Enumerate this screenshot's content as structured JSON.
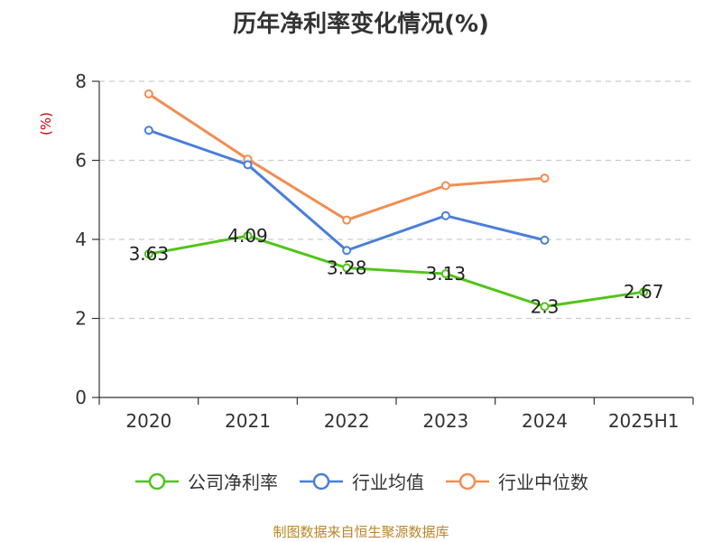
{
  "title": "历年净利率变化情况(%)",
  "y_unit": "(%)",
  "source": "制图数据来自恒生聚源数据库",
  "chart_data": {
    "type": "line",
    "categories": [
      "2020",
      "2021",
      "2022",
      "2023",
      "2024",
      "2025H1"
    ],
    "ylim": [
      0,
      8
    ],
    "yticks": [
      0,
      2,
      4,
      6,
      8
    ],
    "grid": true,
    "legend_position": "bottom",
    "series": [
      {
        "name": "公司净利率",
        "color": "#52c41a",
        "values": [
          3.63,
          4.09,
          3.28,
          3.13,
          2.3,
          2.67
        ],
        "labels": [
          "3.63",
          "4.09",
          "3.28",
          "3.13",
          "2.3",
          "2.67"
        ]
      },
      {
        "name": "行业均值",
        "color": "#4a7fd9",
        "values": [
          6.76,
          5.89,
          3.72,
          4.6,
          3.98,
          null
        ]
      },
      {
        "name": "行业中位数",
        "color": "#f28d52",
        "values": [
          7.68,
          6.03,
          4.49,
          5.36,
          5.55,
          null
        ]
      }
    ]
  }
}
